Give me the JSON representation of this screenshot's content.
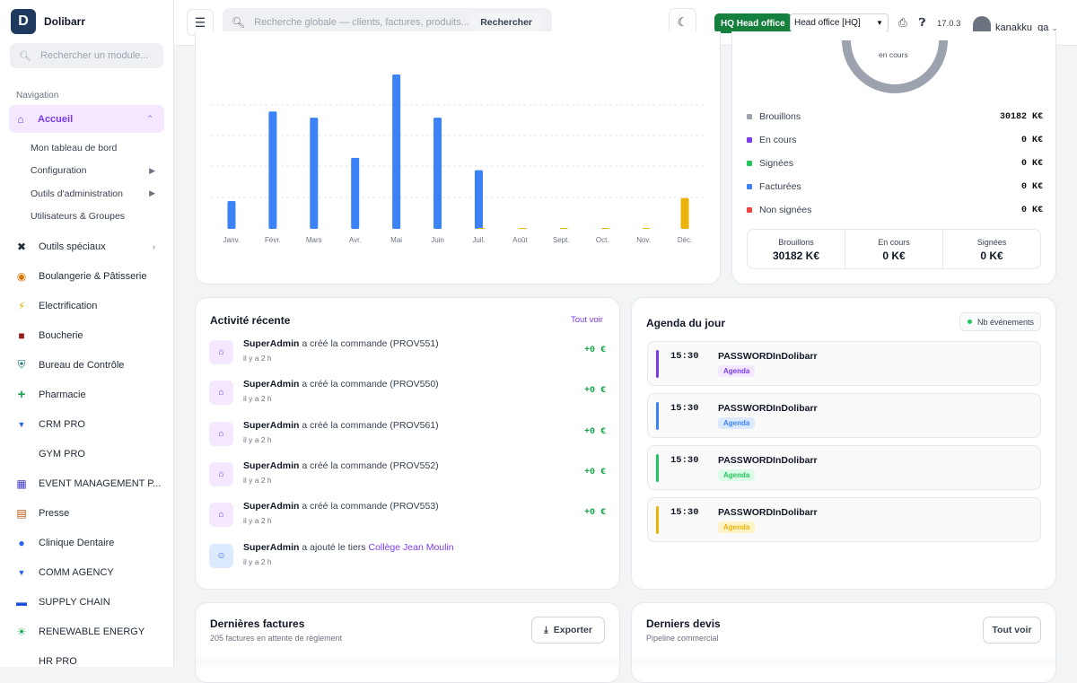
{
  "brand": {
    "logo": "D",
    "name": "Dolibarr"
  },
  "sidebar": {
    "search_placeholder": "Rechercher un module...",
    "nav_title": "Navigation",
    "home": {
      "label": "Accueil"
    },
    "sub_items": [
      {
        "label": "Mon tableau de bord"
      },
      {
        "label": "Configuration"
      },
      {
        "label": "Outils d'administration"
      },
      {
        "label": "Utilisateurs & Groupes"
      }
    ],
    "items": [
      {
        "label": "Outils spéciaux"
      },
      {
        "label": "Boulangerie & Pâtisserie"
      },
      {
        "label": "Electrification"
      },
      {
        "label": "Boucherie"
      },
      {
        "label": "Bureau de Contrôle"
      },
      {
        "label": "Pharmacie"
      },
      {
        "label": "CRM PRO"
      },
      {
        "label": "GYM PRO"
      },
      {
        "label": "EVENT MANAGEMENT P..."
      },
      {
        "label": "Presse"
      },
      {
        "label": "Clinique Dentaire"
      },
      {
        "label": "COMM AGENCY"
      },
      {
        "label": "SUPPLY CHAIN"
      },
      {
        "label": "RENEWABLE ENERGY"
      },
      {
        "label": "HR PRO"
      }
    ]
  },
  "topbar": {
    "search_placeholder": "Recherche globale — clients, factures, produits...",
    "search_button": "Rechercher",
    "hq_badge": "HQ Head office",
    "entity_select": "Head office [HQ]",
    "version": "17.0.3",
    "username": "kanakku_qa"
  },
  "chart_data": {
    "type": "bar",
    "categories": [
      "Janv.",
      "Févr.",
      "Mars",
      "Avr.",
      "Mai",
      "Juin",
      "Juil.",
      "Août",
      "Sept.",
      "Oct.",
      "Nov.",
      "Déc."
    ],
    "series": [
      {
        "color": "#3b82f6",
        "values": [
          18,
          76,
          72,
          46,
          100,
          72,
          38,
          0,
          0,
          0,
          0,
          0
        ]
      },
      {
        "color": "#eab308",
        "values": [
          0,
          0,
          0,
          0,
          0,
          0,
          0.5,
          0.5,
          0.3,
          0.3,
          0.3,
          20
        ]
      }
    ],
    "title": "",
    "xlabel": "",
    "ylabel": ""
  },
  "donut": {
    "center_label": "en cours"
  },
  "proposals": {
    "legend": [
      {
        "label": "Brouillons",
        "value": "30182 K€",
        "color": "#9ca3af"
      },
      {
        "label": "En cours",
        "value": "0 K€",
        "color": "#7c3aed"
      },
      {
        "label": "Signées",
        "value": "0 K€",
        "color": "#22c55e"
      },
      {
        "label": "Facturées",
        "value": "0 K€",
        "color": "#3b82f6"
      },
      {
        "label": "Non signées",
        "value": "0 K€",
        "color": "#ef4444"
      }
    ],
    "stats": [
      {
        "label": "Brouillons",
        "value": "30182 K€"
      },
      {
        "label": "En cours",
        "value": "0 K€"
      },
      {
        "label": "Signées",
        "value": "0 K€"
      }
    ]
  },
  "activity": {
    "title": "Activité récente",
    "link": "Tout voir",
    "items": [
      {
        "user": "SuperAdmin",
        "action": "a créé la commande",
        "ref": "(PROV551)",
        "time": "il y a 2 h",
        "amount": "+0 €"
      },
      {
        "user": "SuperAdmin",
        "action": "a créé la commande",
        "ref": "(PROV550)",
        "time": "il y a 2 h",
        "amount": "+0 €"
      },
      {
        "user": "SuperAdmin",
        "action": "a créé la commande",
        "ref": "(PROV561)",
        "time": "il y a 2 h",
        "amount": "+0 €"
      },
      {
        "user": "SuperAdmin",
        "action": "a créé la commande",
        "ref": "(PROV552)",
        "time": "il y a 2 h",
        "amount": "+0 €"
      },
      {
        "user": "SuperAdmin",
        "action": "a créé la commande",
        "ref": "(PROV553)",
        "time": "il y a 2 h",
        "amount": "+0 €"
      },
      {
        "user": "SuperAdmin",
        "action": "a ajouté le tiers",
        "ref": "Collège Jean Moulin",
        "time": "il y a 2 h",
        "amount": ""
      }
    ]
  },
  "agenda": {
    "title": "Agenda du jour",
    "badge": "Nb événements",
    "events": [
      {
        "time": "15:30",
        "name": "PASSWORDInDolibarr",
        "tag": "Agenda",
        "color": "#7c3aed",
        "tag_bg": "#f3e8ff"
      },
      {
        "time": "15:30",
        "name": "PASSWORDInDolibarr",
        "tag": "Agenda",
        "color": "#3b82f6",
        "tag_bg": "#dbeafe"
      },
      {
        "time": "15:30",
        "name": "PASSWORDInDolibarr",
        "tag": "Agenda",
        "color": "#22c55e",
        "tag_bg": "#dcfce7"
      },
      {
        "time": "15:30",
        "name": "PASSWORDInDolibarr",
        "tag": "Agenda",
        "color": "#eab308",
        "tag_bg": "#fef3c7"
      }
    ]
  },
  "invoices": {
    "title": "Dernières factures",
    "subtitle": "205 factures en attente de règlement",
    "button": "Exporter"
  },
  "quotes": {
    "title": "Derniers devis",
    "subtitle": "Pipeline commercial",
    "button": "Tout voir"
  }
}
